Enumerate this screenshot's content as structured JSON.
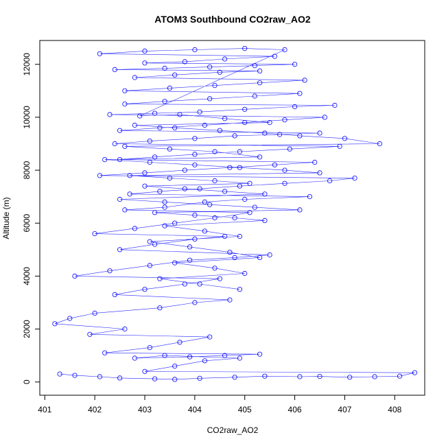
{
  "chart_data": {
    "type": "scatter",
    "title": "ATOM3 Southbound CO2raw_AO2",
    "xlabel": "CO2raw_AO2",
    "ylabel": "Altitude (m)",
    "xlim": [
      400.9,
      408.6
    ],
    "ylim": [
      -500,
      12900
    ],
    "x_ticks": [
      401,
      402,
      403,
      404,
      405,
      406,
      407,
      408
    ],
    "y_ticks": [
      0,
      2000,
      4000,
      6000,
      8000,
      10000,
      12000
    ],
    "grid": false,
    "colors": {
      "series": "#0000ff",
      "axes": "#000000"
    },
    "series": [
      {
        "style": "points-and-lines",
        "x": [
          401.3,
          401.6,
          402.1,
          402.5,
          403.2,
          403.6,
          404.1,
          404.8,
          405.4,
          406.1,
          406.5,
          407.1,
          407.6,
          408.1,
          408.4,
          403.0,
          403.6,
          404.2,
          404.9,
          403.4,
          402.8,
          403.9,
          404.6,
          405.3,
          402.2,
          403.1,
          403.7,
          404.3,
          401.9,
          402.6,
          401.2,
          401.5,
          402.0,
          403.3,
          404.0,
          404.7,
          402.4,
          403.0,
          403.8,
          404.5,
          401.6,
          402.3,
          403.1,
          403.9,
          404.8,
          405.5,
          402.5,
          403.2,
          404.0,
          404.6,
          402.0,
          402.8,
          403.6,
          404.4,
          405.1,
          402.6,
          403.4,
          404.2,
          405.0,
          406.3,
          402.7,
          403.3,
          404.1,
          404.9,
          405.8,
          406.7,
          407.2,
          402.1,
          403.0,
          403.8,
          404.7,
          405.6,
          406.4,
          402.5,
          403.2,
          404.0,
          404.9,
          405.9,
          406.9,
          402.4,
          403.1,
          404.0,
          404.8,
          405.7,
          406.5,
          402.5,
          403.3,
          404.2,
          405.0,
          405.8,
          406.6,
          402.3,
          403.2,
          404.1,
          405.0,
          406.0,
          406.8,
          402.6,
          403.4,
          404.3,
          405.2,
          406.1,
          402.6,
          403.5,
          404.4,
          405.3,
          406.2,
          402.8,
          403.6,
          404.5,
          405.3,
          402.4,
          403.4,
          404.3,
          405.2,
          406.0,
          403.0,
          403.8,
          404.6,
          405.6,
          402.1,
          403.0,
          404.0,
          405.0,
          405.8,
          402.9,
          403.7,
          404.6,
          405.5,
          402.8,
          403.6,
          404.5,
          405.4,
          406.1,
          407.0,
          407.7,
          402.6,
          403.5,
          404.4,
          405.3,
          402.2,
          403.1,
          404.0,
          404.9,
          405.8,
          406.5,
          402.7,
          403.5,
          404.4,
          405.1,
          403.0,
          403.8,
          404.6,
          405.4,
          402.5,
          403.4,
          404.3,
          405.2,
          406.1,
          403.2,
          404.0,
          404.8,
          405.4,
          403.4,
          404.2,
          404.9,
          403.1,
          403.9,
          404.7,
          405.3,
          403.6,
          404.4,
          405.0,
          403.3,
          404.1,
          404.9
        ],
        "y": [
          300,
          250,
          200,
          150,
          120,
          100,
          140,
          180,
          220,
          200,
          210,
          180,
          200,
          220,
          350,
          400,
          600,
          800,
          900,
          1000,
          900,
          950,
          1000,
          1050,
          1100,
          1300,
          1500,
          1700,
          1800,
          2000,
          2200,
          2400,
          2600,
          2800,
          3000,
          3100,
          3300,
          3500,
          3700,
          3900,
          4000,
          4200,
          4400,
          4600,
          4700,
          4800,
          5000,
          5200,
          5400,
          5500,
          5600,
          5800,
          6000,
          6200,
          6400,
          6500,
          6600,
          6800,
          6900,
          7000,
          7100,
          7200,
          7300,
          7400,
          7500,
          7600,
          7700,
          7800,
          7900,
          8000,
          8100,
          8200,
          8300,
          8400,
          8500,
          8600,
          8700,
          8800,
          8900,
          9000,
          9100,
          9200,
          9300,
          9350,
          9400,
          9500,
          9600,
          9700,
          9800,
          9900,
          10000,
          10100,
          10150,
          10200,
          10300,
          10400,
          10450,
          10500,
          10600,
          10700,
          10800,
          10900,
          11000,
          11100,
          11200,
          11300,
          11400,
          11500,
          11600,
          11700,
          11750,
          11800,
          11850,
          11900,
          11950,
          12000,
          12050,
          12100,
          12200,
          12300,
          12400,
          12500,
          12550,
          12600,
          12550,
          10050,
          10100,
          9950,
          9800,
          9700,
          9600,
          9500,
          9400,
          9300,
          9200,
          9000,
          8900,
          8800,
          8700,
          8500,
          8400,
          8300,
          8200,
          8100,
          8000,
          7900,
          7800,
          7700,
          7600,
          7500,
          7400,
          7300,
          7200,
          7100,
          6900,
          6800,
          6700,
          6600,
          6500,
          6400,
          6300,
          6200,
          6100,
          5900,
          5700,
          5500,
          5300,
          5100,
          4900,
          4700,
          4500,
          4300,
          4100,
          3900,
          3700,
          3500
        ]
      }
    ]
  }
}
